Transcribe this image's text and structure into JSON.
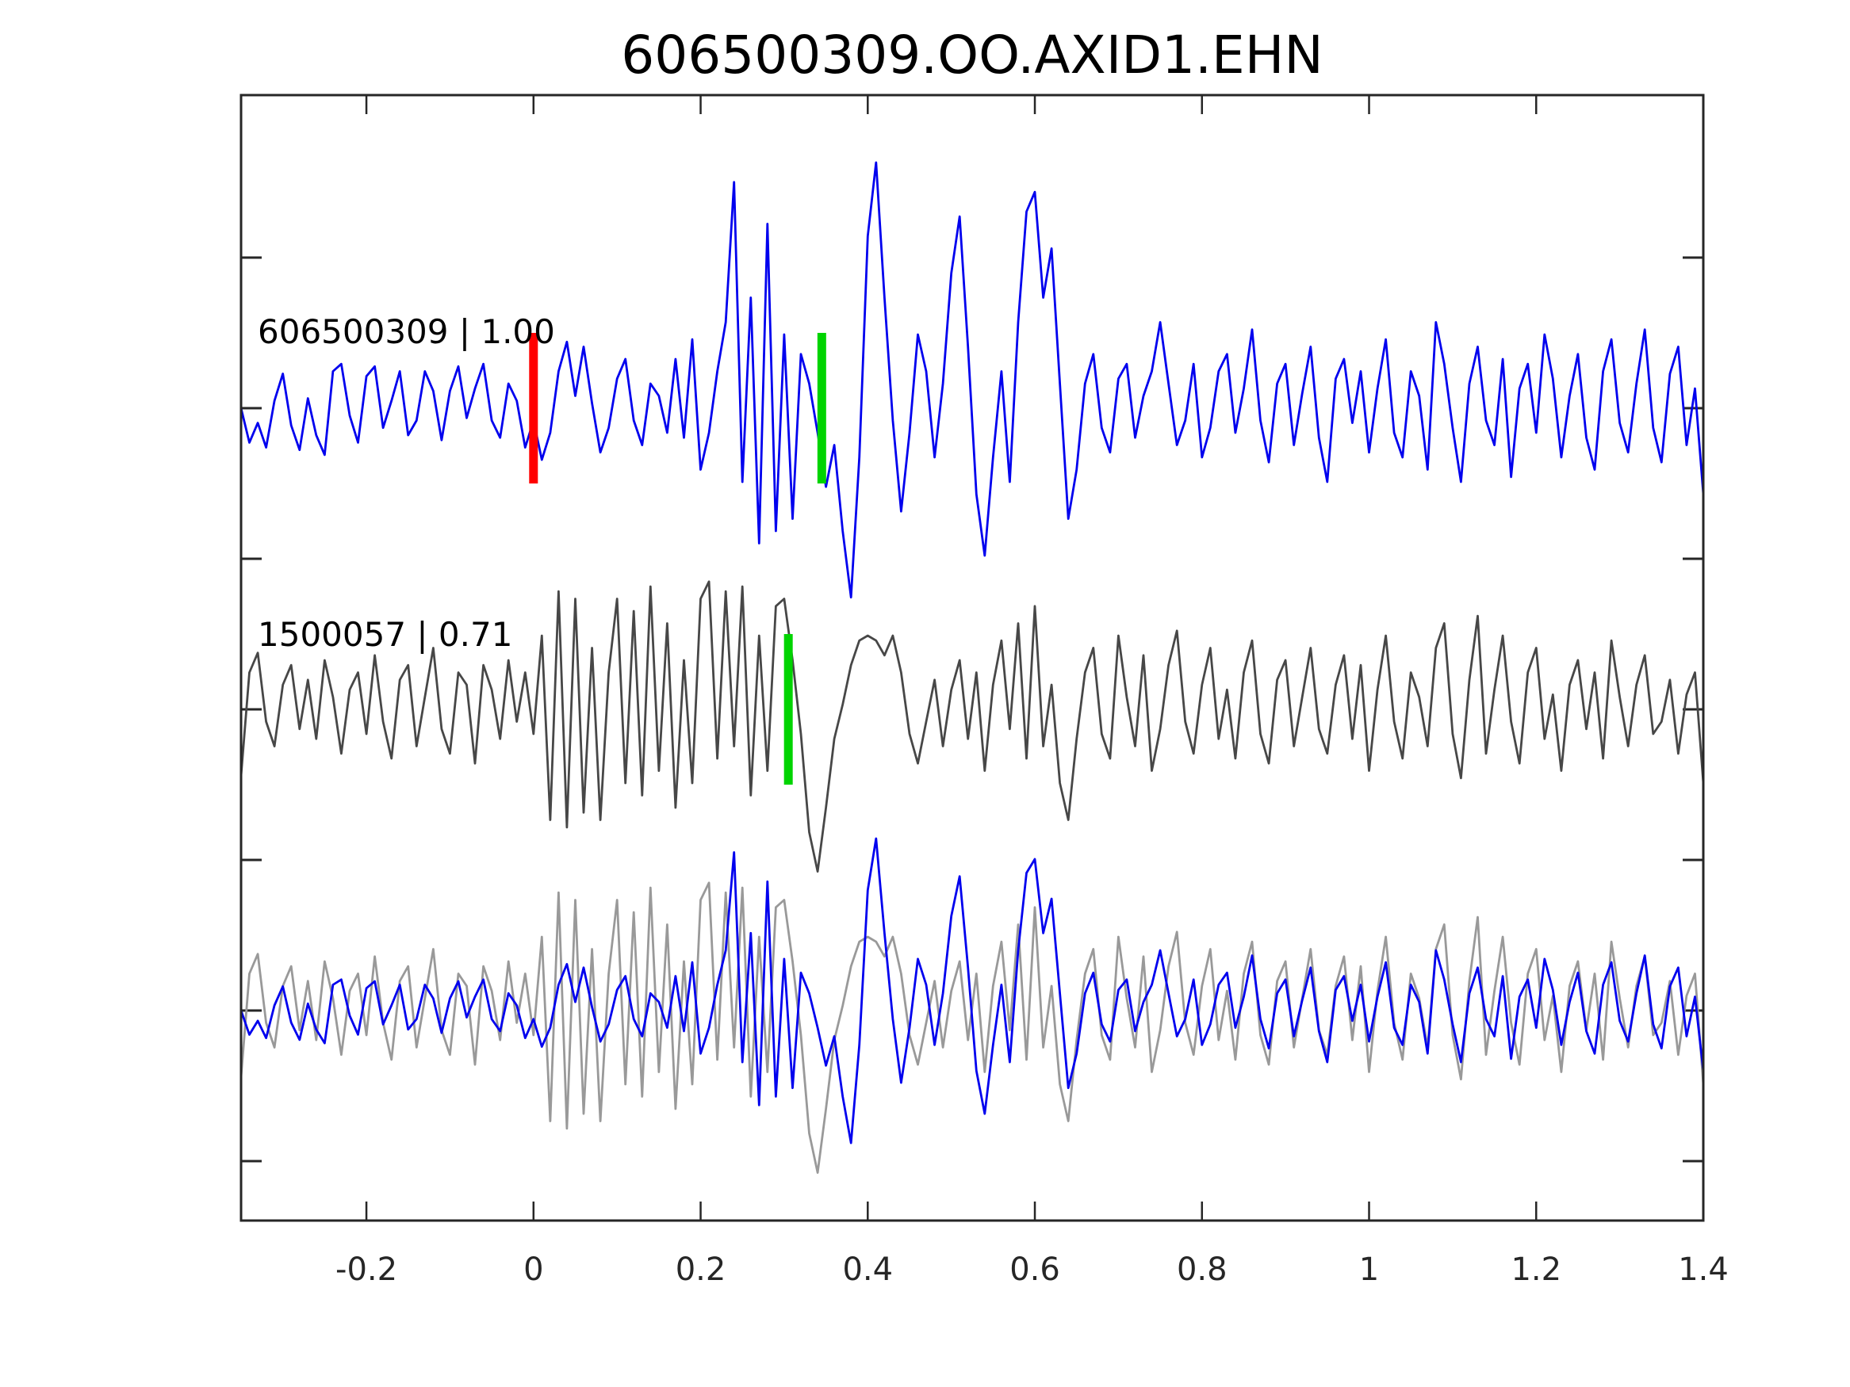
{
  "title": "606500309.OO.AXID1.EHN",
  "colors": {
    "template_blue": "#0000ee",
    "match_dark_gray": "#474747",
    "match_light_gray": "#999999",
    "pick_red": "#ff0000",
    "pick_green": "#00d400",
    "axis": "#262626",
    "background": "#ffffff"
  },
  "axis": {
    "xlim": [
      -0.35,
      1.4
    ],
    "x_ticks": [
      -0.2,
      0,
      0.2,
      0.4,
      0.6,
      0.8,
      1,
      1.2,
      1.4
    ],
    "x_tick_labels": [
      "-0.2",
      "0",
      "0.2",
      "0.4",
      "0.6",
      "0.8",
      "1",
      "1.2",
      "1.4"
    ],
    "y_tick_count": 7,
    "grid": false
  },
  "panels": [
    {
      "name": "template-panel",
      "label": "606500309 | 1.00",
      "traces": [
        {
          "series": 0,
          "color": "#0000ee",
          "scale": 1.0
        }
      ],
      "markers": [
        {
          "t": 0.0,
          "color": "#ff0000"
        },
        {
          "t": 0.345,
          "color": "#00d400"
        }
      ]
    },
    {
      "name": "match-panel",
      "label": "1500057 | 0.71",
      "traces": [
        {
          "series": 1,
          "color": "#474747",
          "scale": 1.0
        }
      ],
      "markers": [
        {
          "t": 0.305,
          "color": "#00d400"
        }
      ]
    },
    {
      "name": "overlay-panel",
      "label": "",
      "traces": [
        {
          "series": 1,
          "color": "#999999",
          "scale": 1.0
        },
        {
          "series": 0,
          "color": "#0000ee",
          "scale": 0.7
        }
      ],
      "markers": []
    }
  ],
  "chart_data": {
    "type": "line",
    "title": "606500309.OO.AXID1.EHN",
    "xlabel": "",
    "ylabel": "",
    "xlim": [
      -0.35,
      1.4
    ],
    "x_ticks": [
      -0.2,
      0,
      0.2,
      0.4,
      0.6,
      0.8,
      1,
      1.2,
      1.4
    ],
    "grid": false,
    "legend": "none",
    "x_start": -0.35,
    "dt": 0.01,
    "picks": [
      {
        "panel": 0,
        "t": 0.0,
        "color": "#ff0000"
      },
      {
        "panel": 0,
        "t": 0.345,
        "color": "#00d400"
      },
      {
        "panel": 1,
        "t": 0.305,
        "color": "#00d400"
      }
    ],
    "series": [
      {
        "name": "606500309",
        "role": "template",
        "correlation": "1.00",
        "color": "#0000ee",
        "values": [
          0.0,
          -0.14,
          -0.06,
          -0.16,
          0.03,
          0.14,
          -0.07,
          -0.17,
          0.04,
          -0.11,
          -0.19,
          0.15,
          0.18,
          -0.03,
          -0.14,
          0.13,
          0.17,
          -0.08,
          0.03,
          0.15,
          -0.11,
          -0.05,
          0.15,
          0.07,
          -0.13,
          0.07,
          0.17,
          -0.04,
          0.08,
          0.18,
          -0.05,
          -0.12,
          0.1,
          0.03,
          -0.16,
          -0.05,
          -0.21,
          -0.1,
          0.15,
          0.27,
          0.05,
          0.25,
          0.02,
          -0.18,
          -0.08,
          0.12,
          0.2,
          -0.05,
          -0.15,
          0.1,
          0.05,
          -0.1,
          0.2,
          -0.12,
          0.28,
          -0.25,
          -0.1,
          0.15,
          0.35,
          0.92,
          -0.3,
          0.45,
          -0.55,
          0.75,
          -0.5,
          0.3,
          -0.45,
          0.22,
          0.1,
          -0.1,
          -0.32,
          -0.15,
          -0.5,
          -0.77,
          -0.2,
          0.7,
          1.0,
          0.45,
          -0.05,
          -0.42,
          -0.1,
          0.3,
          0.15,
          -0.2,
          0.1,
          0.55,
          0.78,
          0.25,
          -0.35,
          -0.6,
          -0.2,
          0.15,
          -0.3,
          0.35,
          0.8,
          0.88,
          0.45,
          0.65,
          0.1,
          -0.45,
          -0.25,
          0.1,
          0.22,
          -0.08,
          -0.18,
          0.12,
          0.18,
          -0.12,
          0.05,
          0.15,
          0.35,
          0.1,
          -0.15,
          -0.05,
          0.18,
          -0.2,
          -0.08,
          0.15,
          0.22,
          -0.1,
          0.08,
          0.32,
          -0.05,
          -0.22,
          0.1,
          0.18,
          -0.15,
          0.06,
          0.25,
          -0.12,
          -0.3,
          0.12,
          0.2,
          -0.06,
          0.15,
          -0.18,
          0.08,
          0.28,
          -0.1,
          -0.2,
          0.15,
          0.05,
          -0.25,
          0.35,
          0.18,
          -0.08,
          -0.3,
          0.1,
          0.25,
          -0.05,
          -0.15,
          0.2,
          -0.28,
          0.08,
          0.18,
          -0.1,
          0.3,
          0.12,
          -0.2,
          0.05,
          0.22,
          -0.12,
          -0.25,
          0.15,
          0.28,
          -0.06,
          -0.18,
          0.1,
          0.32,
          -0.08,
          -0.22,
          0.14,
          0.25,
          -0.15,
          0.08,
          -0.35
        ]
      },
      {
        "name": "1500057",
        "role": "match",
        "correlation": "0.71",
        "color": "#474747",
        "values": [
          -0.27,
          0.15,
          0.23,
          -0.05,
          -0.15,
          0.1,
          0.18,
          -0.08,
          0.12,
          -0.12,
          0.2,
          0.05,
          -0.18,
          0.08,
          0.15,
          -0.1,
          0.22,
          -0.05,
          -0.2,
          0.12,
          0.18,
          -0.15,
          0.05,
          0.25,
          -0.08,
          -0.18,
          0.15,
          0.1,
          -0.22,
          0.18,
          0.08,
          -0.12,
          0.2,
          -0.05,
          0.15,
          -0.1,
          0.3,
          -0.45,
          0.48,
          -0.48,
          0.45,
          -0.42,
          0.25,
          -0.45,
          0.15,
          0.45,
          -0.3,
          0.4,
          -0.35,
          0.5,
          -0.25,
          0.35,
          -0.4,
          0.2,
          -0.3,
          0.45,
          0.52,
          -0.2,
          0.48,
          -0.15,
          0.5,
          -0.35,
          0.3,
          -0.25,
          0.42,
          0.45,
          0.2,
          -0.1,
          -0.5,
          -0.66,
          -0.4,
          -0.12,
          0.02,
          0.18,
          0.28,
          0.3,
          0.28,
          0.22,
          0.3,
          0.15,
          -0.1,
          -0.22,
          -0.05,
          0.12,
          -0.15,
          0.08,
          0.2,
          -0.12,
          0.15,
          -0.25,
          0.1,
          0.28,
          -0.08,
          0.35,
          -0.2,
          0.42,
          -0.15,
          0.1,
          -0.3,
          -0.45,
          -0.12,
          0.15,
          0.25,
          -0.1,
          -0.2,
          0.3,
          0.05,
          -0.15,
          0.22,
          -0.25,
          -0.08,
          0.18,
          0.32,
          -0.05,
          -0.18,
          0.1,
          0.25,
          -0.12,
          0.08,
          -0.2,
          0.15,
          0.28,
          -0.1,
          -0.22,
          0.12,
          0.2,
          -0.15,
          0.05,
          0.25,
          -0.08,
          -0.18,
          0.1,
          0.22,
          -0.12,
          0.18,
          -0.25,
          0.08,
          0.3,
          -0.05,
          -0.2,
          0.15,
          0.05,
          -0.15,
          0.25,
          0.35,
          -0.1,
          -0.28,
          0.12,
          0.38,
          -0.18,
          0.08,
          0.3,
          -0.05,
          -0.22,
          0.15,
          0.25,
          -0.12,
          0.06,
          -0.25,
          0.1,
          0.2,
          -0.08,
          0.15,
          -0.2,
          0.28,
          0.05,
          -0.15,
          0.1,
          0.22,
          -0.1,
          -0.05,
          0.12,
          -0.18,
          0.06,
          0.15,
          -0.3
        ]
      }
    ]
  }
}
